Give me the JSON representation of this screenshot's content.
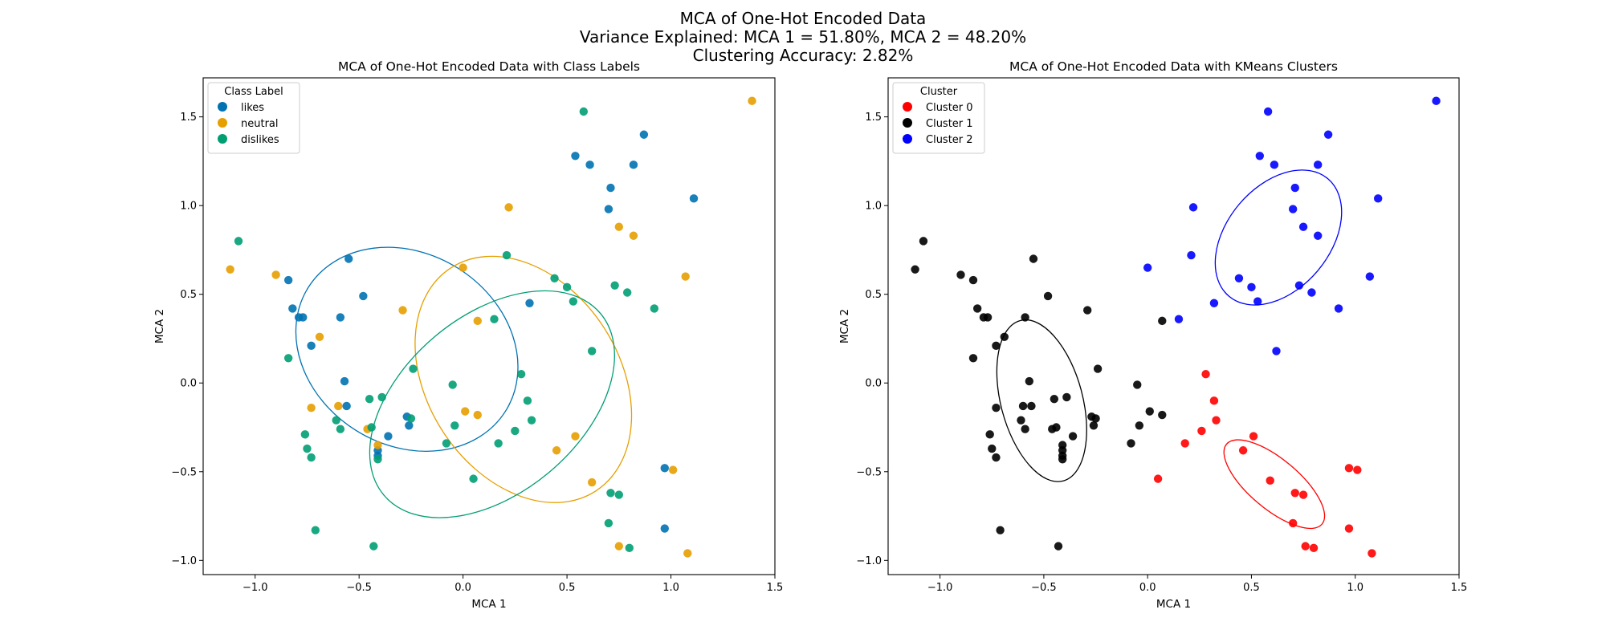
{
  "suptitle": {
    "line1": "MCA of One-Hot Encoded Data",
    "line2": "Variance Explained: MCA 1 = 51.80%, MCA 2 = 48.20%",
    "line3": "Clustering Accuracy: 2.82%"
  },
  "chart_data": [
    {
      "type": "scatter",
      "title": "MCA of One-Hot Encoded Data with Class Labels",
      "xlabel": "MCA 1",
      "ylabel": "MCA 2",
      "xlim": [
        -1.25,
        1.5
      ],
      "ylim": [
        -1.08,
        1.72
      ],
      "xticks": [
        -1.0,
        -0.5,
        0.0,
        0.5,
        1.0,
        1.5
      ],
      "xtick_labels": [
        "−1.0",
        "−0.5",
        "0.0",
        "0.5",
        "1.0",
        "1.5"
      ],
      "yticks": [
        -1.0,
        -0.5,
        0.0,
        0.5,
        1.0,
        1.5
      ],
      "ytick_labels": [
        "−1.0",
        "−0.5",
        "0.0",
        "0.5",
        "1.0",
        "1.5"
      ],
      "grid": false,
      "legend": {
        "title": "Class Label",
        "placement": "top-left"
      },
      "series": [
        {
          "name": "likes",
          "color": "#0072b2",
          "points": [
            [
              -0.84,
              0.58
            ],
            [
              -0.82,
              0.42
            ],
            [
              -0.79,
              0.37
            ],
            [
              -0.77,
              0.37
            ],
            [
              -0.73,
              0.21
            ],
            [
              -0.55,
              0.7
            ],
            [
              -0.48,
              0.49
            ],
            [
              -0.59,
              0.37
            ],
            [
              -0.57,
              0.01
            ],
            [
              -0.56,
              -0.13
            ],
            [
              -0.36,
              -0.3
            ],
            [
              -0.27,
              -0.19
            ],
            [
              -0.26,
              -0.24
            ],
            [
              -0.41,
              -0.38
            ],
            [
              -0.41,
              -0.41
            ],
            [
              0.32,
              0.45
            ],
            [
              0.54,
              1.28
            ],
            [
              0.61,
              1.23
            ],
            [
              0.7,
              0.98
            ],
            [
              0.71,
              1.1
            ],
            [
              0.82,
              1.23
            ],
            [
              0.87,
              1.4
            ],
            [
              0.97,
              -0.48
            ],
            [
              0.97,
              -0.82
            ],
            [
              1.11,
              1.04
            ]
          ]
        },
        {
          "name": "neutral",
          "color": "#e69f00",
          "points": [
            [
              -1.12,
              0.64
            ],
            [
              -0.9,
              0.61
            ],
            [
              -0.73,
              -0.14
            ],
            [
              -0.69,
              0.26
            ],
            [
              -0.6,
              -0.13
            ],
            [
              -0.46,
              -0.26
            ],
            [
              -0.41,
              -0.35
            ],
            [
              -0.29,
              0.41
            ],
            [
              0.0,
              0.65
            ],
            [
              0.01,
              -0.16
            ],
            [
              0.07,
              0.35
            ],
            [
              0.07,
              -0.18
            ],
            [
              0.22,
              0.99
            ],
            [
              0.45,
              -0.38
            ],
            [
              0.54,
              -0.3
            ],
            [
              0.62,
              -0.56
            ],
            [
              0.75,
              0.88
            ],
            [
              0.75,
              -0.92
            ],
            [
              0.82,
              0.83
            ],
            [
              1.01,
              -0.49
            ],
            [
              1.07,
              0.6
            ],
            [
              1.08,
              -0.96
            ],
            [
              1.39,
              1.59
            ]
          ]
        },
        {
          "name": "dislikes",
          "color": "#009e73",
          "points": [
            [
              -1.08,
              0.8
            ],
            [
              -0.84,
              0.14
            ],
            [
              -0.76,
              -0.29
            ],
            [
              -0.75,
              -0.37
            ],
            [
              -0.73,
              -0.42
            ],
            [
              -0.71,
              -0.83
            ],
            [
              -0.61,
              -0.21
            ],
            [
              -0.59,
              -0.26
            ],
            [
              -0.45,
              -0.09
            ],
            [
              -0.44,
              -0.25
            ],
            [
              -0.43,
              -0.92
            ],
            [
              -0.41,
              -0.43
            ],
            [
              -0.39,
              -0.08
            ],
            [
              -0.25,
              -0.2
            ],
            [
              -0.24,
              0.08
            ],
            [
              -0.08,
              -0.34
            ],
            [
              -0.05,
              -0.01
            ],
            [
              -0.04,
              -0.24
            ],
            [
              0.05,
              -0.54
            ],
            [
              0.15,
              0.36
            ],
            [
              0.17,
              -0.34
            ],
            [
              0.21,
              0.72
            ],
            [
              0.25,
              -0.27
            ],
            [
              0.28,
              0.05
            ],
            [
              0.31,
              -0.1
            ],
            [
              0.33,
              -0.21
            ],
            [
              0.44,
              0.59
            ],
            [
              0.5,
              0.54
            ],
            [
              0.53,
              0.46
            ],
            [
              0.58,
              1.53
            ],
            [
              0.62,
              0.18
            ],
            [
              0.7,
              -0.79
            ],
            [
              0.71,
              -0.62
            ],
            [
              0.73,
              0.55
            ],
            [
              0.75,
              -0.63
            ],
            [
              0.79,
              0.51
            ],
            [
              0.8,
              -0.93
            ],
            [
              0.92,
              0.42
            ]
          ]
        }
      ],
      "ellipses": [
        {
          "series": "likes",
          "color": "#0072b2",
          "cx": -0.27,
          "cy": 0.19,
          "rx": 0.56,
          "ry": 0.54,
          "angle_deg": -32
        },
        {
          "series": "neutral",
          "color": "#e69f00",
          "cx": 0.29,
          "cy": 0.02,
          "rx": 0.64,
          "ry": 0.54,
          "angle_deg": -57
        },
        {
          "series": "dislikes",
          "color": "#009e73",
          "cx": 0.14,
          "cy": -0.12,
          "rx": 0.68,
          "ry": 0.5,
          "angle_deg": 40
        }
      ]
    },
    {
      "type": "scatter",
      "title": "MCA of One-Hot Encoded Data with KMeans Clusters",
      "xlabel": "MCA 1",
      "ylabel": "MCA 2",
      "xlim": [
        -1.25,
        1.5
      ],
      "ylim": [
        -1.08,
        1.72
      ],
      "xticks": [
        -1.0,
        -0.5,
        0.0,
        0.5,
        1.0,
        1.5
      ],
      "xtick_labels": [
        "−1.0",
        "−0.5",
        "0.0",
        "0.5",
        "1.0",
        "1.5"
      ],
      "yticks": [
        -1.0,
        -0.5,
        0.0,
        0.5,
        1.0,
        1.5
      ],
      "ytick_labels": [
        "−1.0",
        "−0.5",
        "0.0",
        "0.5",
        "1.0",
        "1.5"
      ],
      "grid": false,
      "legend": {
        "title": "Cluster",
        "placement": "top-left"
      },
      "series": [
        {
          "name": "Cluster 0",
          "color": "#ff0000",
          "points": [
            [
              0.05,
              -0.54
            ],
            [
              0.18,
              -0.34
            ],
            [
              0.26,
              -0.27
            ],
            [
              0.28,
              0.05
            ],
            [
              0.32,
              -0.1
            ],
            [
              0.33,
              -0.21
            ],
            [
              0.46,
              -0.38
            ],
            [
              0.51,
              -0.3
            ],
            [
              0.59,
              -0.55
            ],
            [
              0.7,
              -0.79
            ],
            [
              0.71,
              -0.62
            ],
            [
              0.75,
              -0.63
            ],
            [
              0.76,
              -0.92
            ],
            [
              0.8,
              -0.93
            ],
            [
              0.97,
              -0.82
            ],
            [
              0.97,
              -0.48
            ],
            [
              1.01,
              -0.49
            ],
            [
              1.08,
              -0.96
            ]
          ]
        },
        {
          "name": "Cluster 1",
          "color": "#000000",
          "points": [
            [
              -1.12,
              0.64
            ],
            [
              -1.08,
              0.8
            ],
            [
              -0.9,
              0.61
            ],
            [
              -0.84,
              0.58
            ],
            [
              -0.84,
              0.14
            ],
            [
              -0.82,
              0.42
            ],
            [
              -0.79,
              0.37
            ],
            [
              -0.77,
              0.37
            ],
            [
              -0.76,
              -0.29
            ],
            [
              -0.75,
              -0.37
            ],
            [
              -0.73,
              -0.42
            ],
            [
              -0.73,
              0.21
            ],
            [
              -0.73,
              -0.14
            ],
            [
              -0.69,
              0.26
            ],
            [
              -0.71,
              -0.83
            ],
            [
              -0.61,
              -0.21
            ],
            [
              -0.59,
              -0.26
            ],
            [
              -0.6,
              -0.13
            ],
            [
              -0.59,
              0.37
            ],
            [
              -0.57,
              0.01
            ],
            [
              -0.56,
              -0.13
            ],
            [
              -0.55,
              0.7
            ],
            [
              -0.48,
              0.49
            ],
            [
              -0.46,
              -0.26
            ],
            [
              -0.45,
              -0.09
            ],
            [
              -0.44,
              -0.25
            ],
            [
              -0.43,
              -0.92
            ],
            [
              -0.41,
              -0.35
            ],
            [
              -0.41,
              -0.38
            ],
            [
              -0.41,
              -0.41
            ],
            [
              -0.41,
              -0.43
            ],
            [
              -0.39,
              -0.08
            ],
            [
              -0.36,
              -0.3
            ],
            [
              -0.29,
              0.41
            ],
            [
              -0.27,
              -0.19
            ],
            [
              -0.26,
              -0.24
            ],
            [
              -0.25,
              -0.2
            ],
            [
              -0.24,
              0.08
            ],
            [
              -0.08,
              -0.34
            ],
            [
              -0.05,
              -0.01
            ],
            [
              -0.04,
              -0.24
            ],
            [
              0.01,
              -0.16
            ],
            [
              0.07,
              0.35
            ],
            [
              0.07,
              -0.18
            ]
          ]
        },
        {
          "name": "Cluster 2",
          "color": "#0000ff",
          "points": [
            [
              0.0,
              0.65
            ],
            [
              0.15,
              0.36
            ],
            [
              0.21,
              0.72
            ],
            [
              0.22,
              0.99
            ],
            [
              0.32,
              0.45
            ],
            [
              0.44,
              0.59
            ],
            [
              0.5,
              0.54
            ],
            [
              0.53,
              0.46
            ],
            [
              0.54,
              1.28
            ],
            [
              0.58,
              1.53
            ],
            [
              0.61,
              1.23
            ],
            [
              0.62,
              0.18
            ],
            [
              0.7,
              0.98
            ],
            [
              0.71,
              1.1
            ],
            [
              0.73,
              0.55
            ],
            [
              0.75,
              0.88
            ],
            [
              0.79,
              0.51
            ],
            [
              0.82,
              0.83
            ],
            [
              0.82,
              1.23
            ],
            [
              0.87,
              1.4
            ],
            [
              0.92,
              0.42
            ],
            [
              1.07,
              0.6
            ],
            [
              1.11,
              1.04
            ],
            [
              1.39,
              1.59
            ]
          ]
        }
      ],
      "ellipses": [
        {
          "series": "Cluster 0",
          "color": "#ff0000",
          "cx": 0.61,
          "cy": -0.57,
          "rx": 0.3,
          "ry": 0.14,
          "angle_deg": -40
        },
        {
          "series": "Cluster 1",
          "color": "#000000",
          "cx": -0.51,
          "cy": -0.1,
          "rx": 0.4,
          "ry": 0.23,
          "angle_deg": -75
        },
        {
          "series": "Cluster 2",
          "color": "#0000ff",
          "cx": 0.63,
          "cy": 0.82,
          "rx": 0.37,
          "ry": 0.29,
          "angle_deg": 50
        }
      ]
    }
  ]
}
